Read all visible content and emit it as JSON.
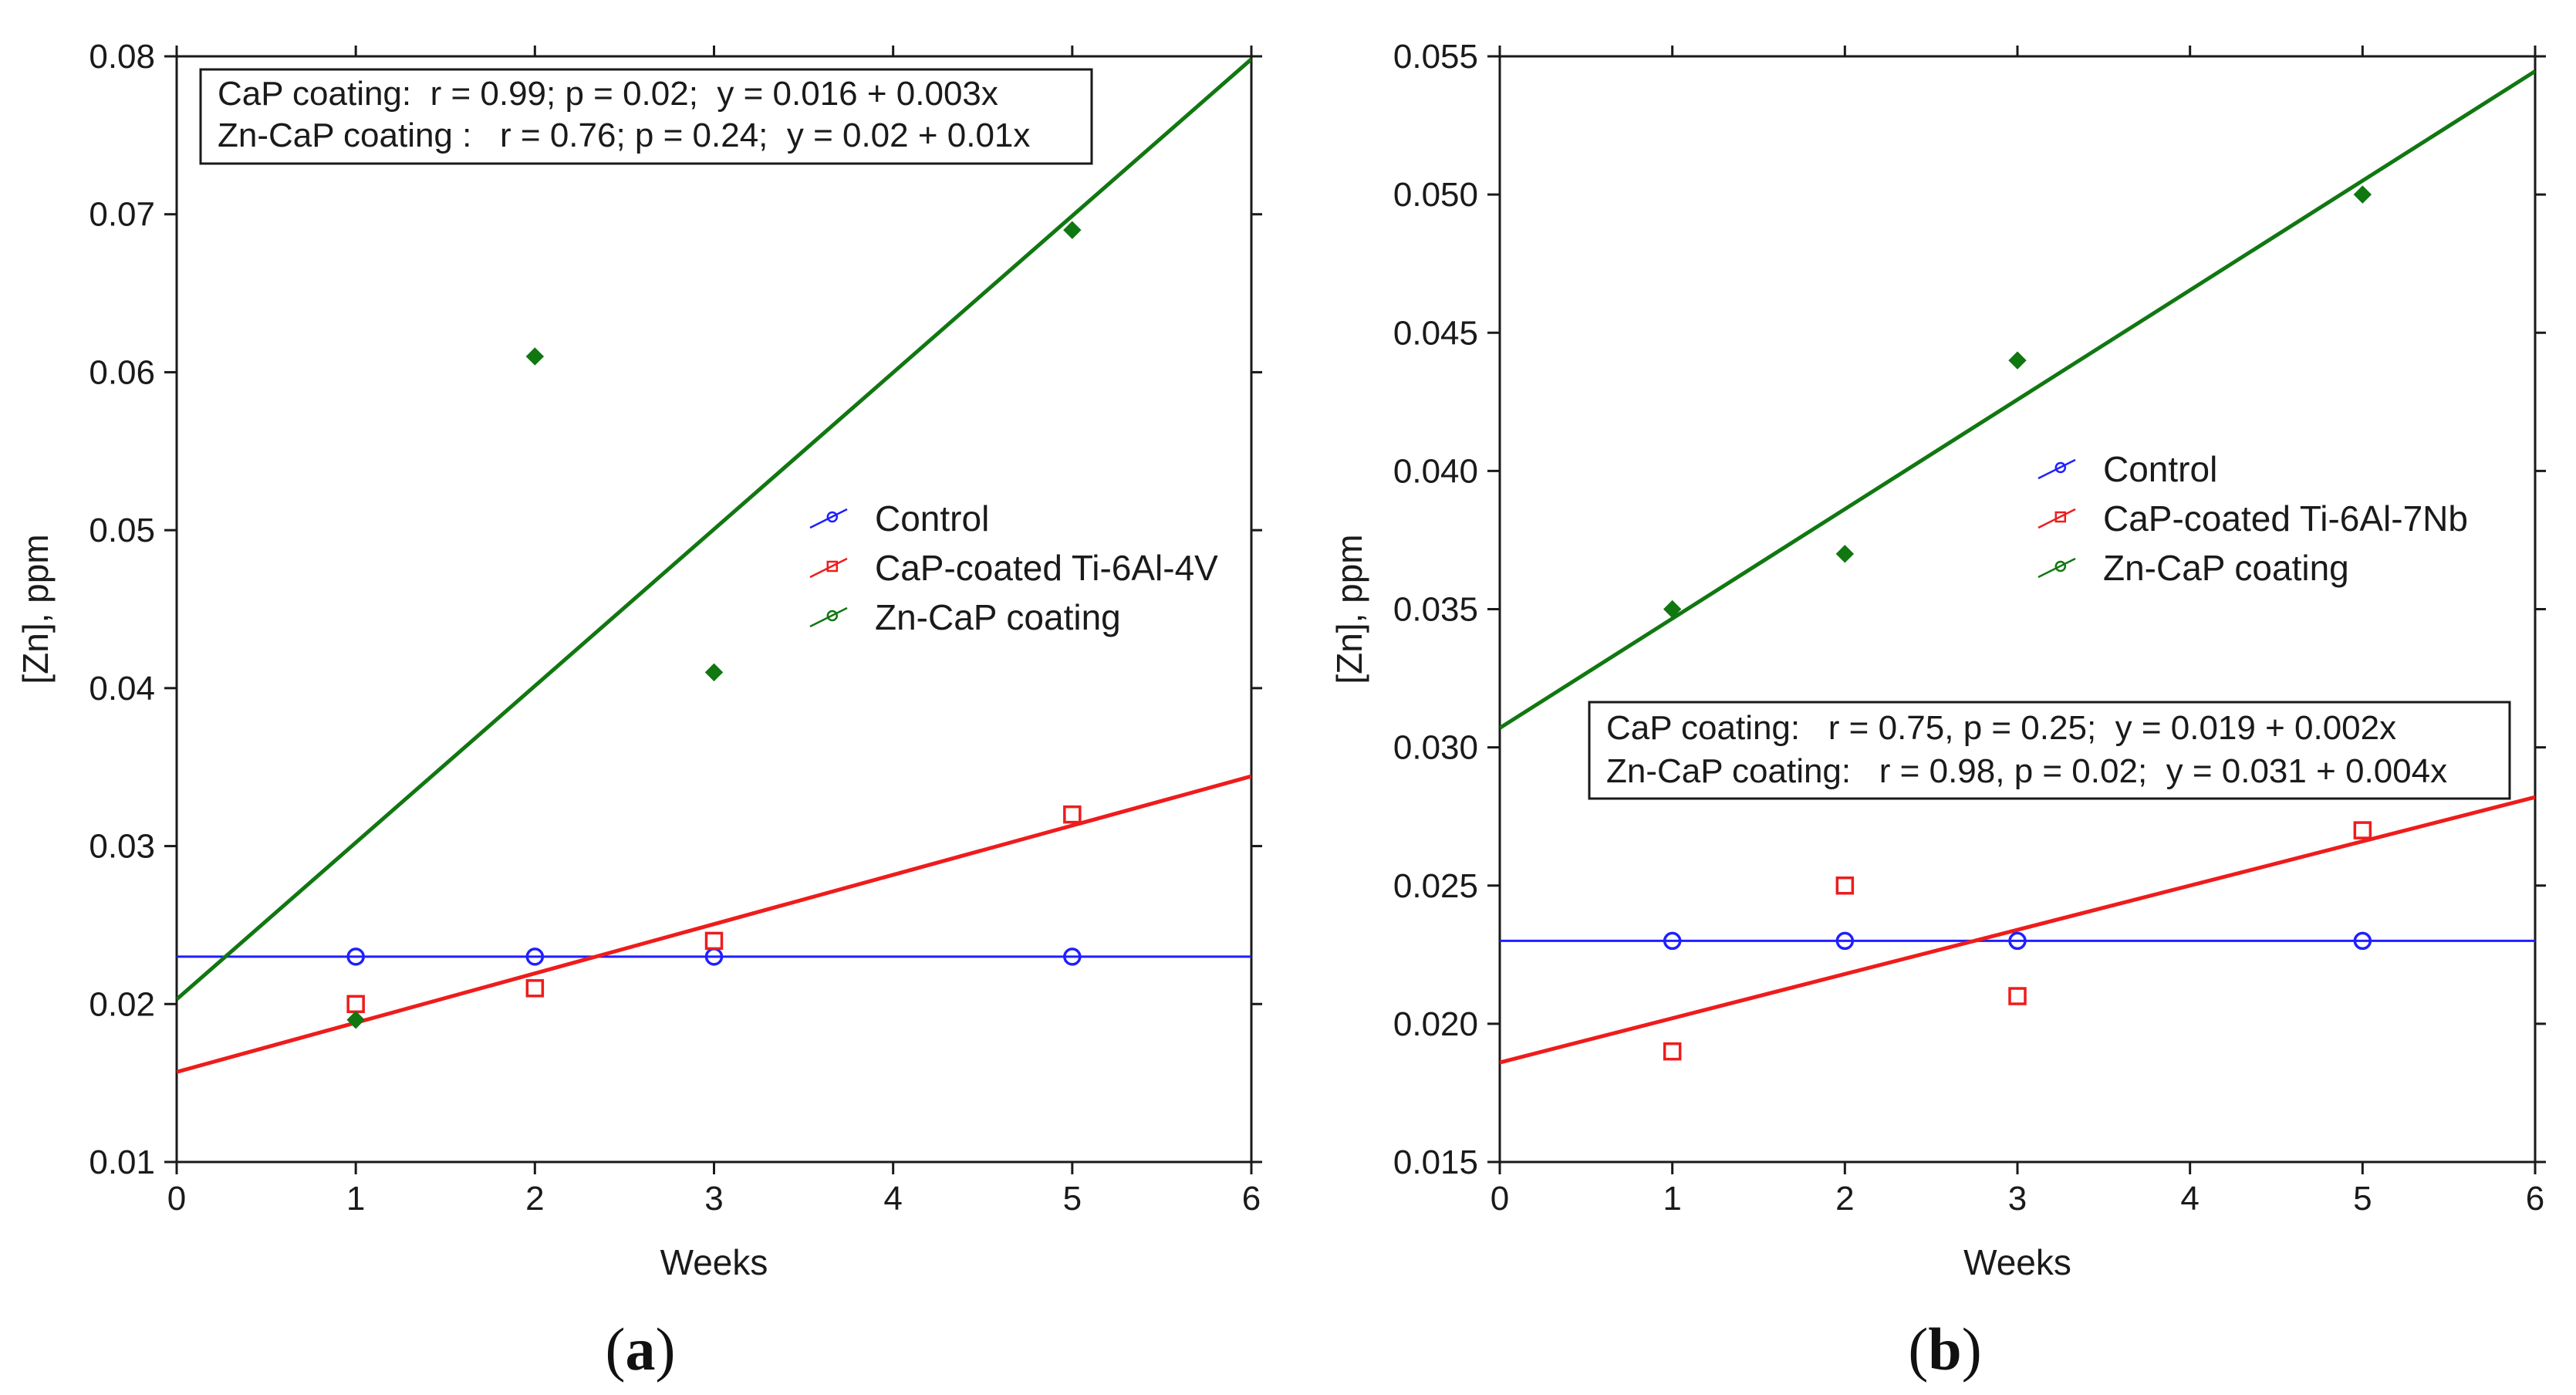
{
  "chart_data": [
    {
      "type": "scatter",
      "panel_label": "(a)",
      "panel_letter": "a",
      "xlabel": "Weeks",
      "ylabel": "[Zn], ppm",
      "xlim": [
        0,
        6
      ],
      "ylim": [
        0.01,
        0.08
      ],
      "x_ticks": [
        "0",
        "1",
        "2",
        "3",
        "4",
        "5",
        "6"
      ],
      "y_ticks": [
        "0.01",
        "0.02",
        "0.03",
        "0.04",
        "0.05",
        "0.06",
        "0.07",
        "0.08"
      ],
      "grid": false,
      "legend_position": "middle-right",
      "stats_position": "top",
      "stats_lines": [
        "CaP coating:  r = 0.99; p = 0.02;  y = 0.016 + 0.003x",
        "Zn-CaP coating :   r = 0.76; p = 0.24;  y = 0.02 + 0.01x"
      ],
      "series": [
        {
          "name": "Control",
          "color": "#1f1fff",
          "marker": "circle",
          "x": [
            1,
            2,
            3,
            5
          ],
          "y": [
            0.023,
            0.023,
            0.023,
            0.023
          ],
          "fit": {
            "intercept": 0.023,
            "slope": 0
          }
        },
        {
          "name": "CaP-coated Ti-6Al-4V",
          "color": "#ee1c1c",
          "marker": "square",
          "x": [
            1,
            2,
            3,
            5
          ],
          "y": [
            0.02,
            0.021,
            0.024,
            0.032
          ],
          "fit": {
            "intercept": 0.0157,
            "slope": 0.00312
          }
        },
        {
          "name": "Zn-CaP coating",
          "color": "#117711",
          "marker": "diamond",
          "x": [
            1,
            2,
            3,
            5
          ],
          "y": [
            0.019,
            0.061,
            0.041,
            0.069
          ],
          "fit": {
            "intercept": 0.0203,
            "slope": 0.00992
          }
        }
      ]
    },
    {
      "type": "scatter",
      "panel_label": "(b)",
      "panel_letter": "b",
      "xlabel": "Weeks",
      "ylabel": "[Zn], ppm",
      "xlim": [
        0,
        6
      ],
      "ylim": [
        0.015,
        0.055
      ],
      "x_ticks": [
        "0",
        "1",
        "2",
        "3",
        "4",
        "5",
        "6"
      ],
      "y_ticks": [
        "0.015",
        "0.020",
        "0.025",
        "0.030",
        "0.035",
        "0.040",
        "0.045",
        "0.050",
        "0.055"
      ],
      "grid": false,
      "legend_position": "upper-right",
      "stats_position": "middle-right",
      "stats_lines": [
        "CaP coating:   r = 0.75, p = 0.25;  y = 0.019 + 0.002x",
        "Zn-CaP coating:   r = 0.98, p = 0.02;  y = 0.031 + 0.004x"
      ],
      "series": [
        {
          "name": "Control",
          "color": "#1f1fff",
          "marker": "circle",
          "x": [
            1,
            2,
            3,
            5
          ],
          "y": [
            0.023,
            0.023,
            0.023,
            0.023
          ],
          "fit": {
            "intercept": 0.023,
            "slope": 0
          }
        },
        {
          "name": "CaP-coated Ti-6Al-7Nb",
          "color": "#ee1c1c",
          "marker": "square",
          "x": [
            1,
            2,
            3,
            5
          ],
          "y": [
            0.019,
            0.025,
            0.021,
            0.027
          ],
          "fit": {
            "intercept": 0.0186,
            "slope": 0.0016
          }
        },
        {
          "name": "Zn-CaP coating",
          "color": "#117711",
          "marker": "diamond",
          "x": [
            1,
            2,
            3,
            5
          ],
          "y": [
            0.035,
            0.037,
            0.044,
            0.05
          ],
          "fit": {
            "intercept": 0.0307,
            "slope": 0.00396
          }
        }
      ]
    }
  ]
}
